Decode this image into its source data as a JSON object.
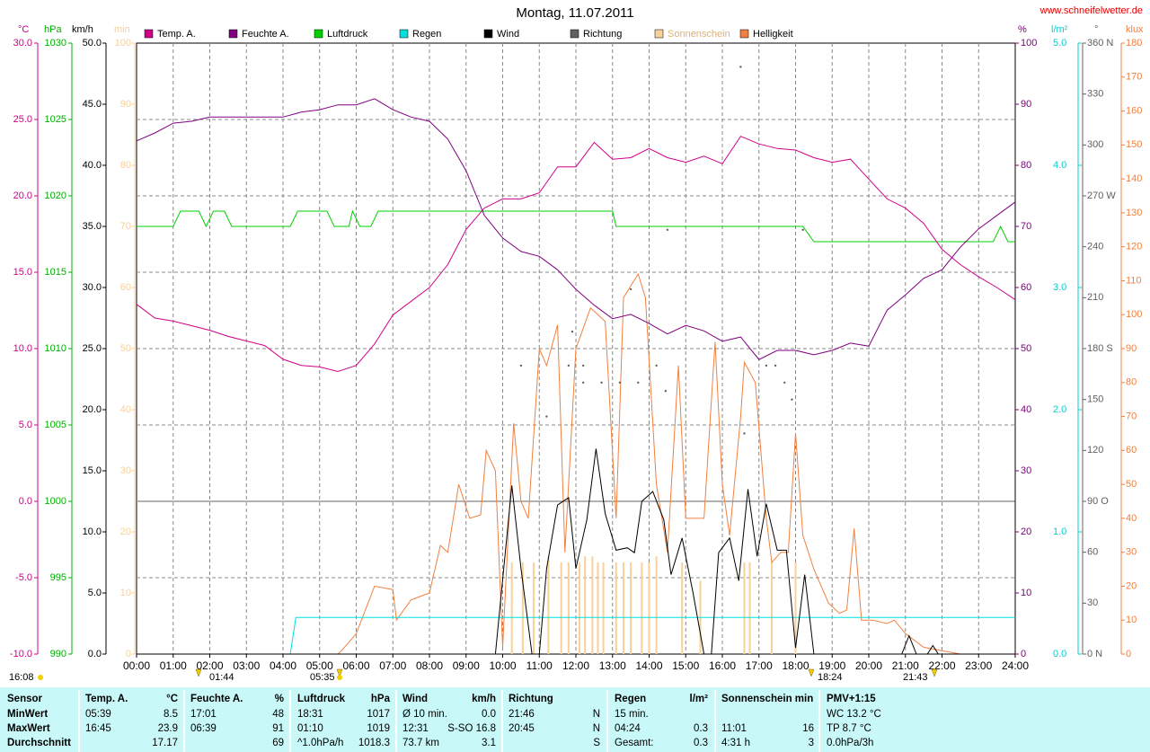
{
  "chart_data": {
    "type": "line",
    "title": "Montag, 11.07.2011",
    "source": "www.schneifelwetter.de",
    "xlim": [
      0,
      24
    ],
    "xticks": [
      {
        "value": 0,
        "label": "00:00"
      },
      {
        "value": 1,
        "label": "01:00"
      },
      {
        "value": 2,
        "label": "02:00"
      },
      {
        "value": 3,
        "label": "03:00"
      },
      {
        "value": 4,
        "label": "04:00"
      },
      {
        "value": 5,
        "label": "05:00"
      },
      {
        "value": 6,
        "label": "06:00"
      },
      {
        "value": 7,
        "label": "07:00"
      },
      {
        "value": 8,
        "label": "08:00"
      },
      {
        "value": 9,
        "label": "09:00"
      },
      {
        "value": 10,
        "label": "10:00"
      },
      {
        "value": 11,
        "label": "11:00"
      },
      {
        "value": 12,
        "label": "12:00"
      },
      {
        "value": 13,
        "label": "13:00"
      },
      {
        "value": 14,
        "label": "14:00"
      },
      {
        "value": 15,
        "label": "15:00"
      },
      {
        "value": 16,
        "label": "16:00"
      },
      {
        "value": 17,
        "label": "17:00"
      },
      {
        "value": 18,
        "label": "18:00"
      },
      {
        "value": 19,
        "label": "19:00"
      },
      {
        "value": 20,
        "label": "20:00"
      },
      {
        "value": 21,
        "label": "21:00"
      },
      {
        "value": 22,
        "label": "22:00"
      },
      {
        "value": 23,
        "label": "23:00"
      },
      {
        "value": 24,
        "label": "24:00"
      }
    ],
    "grid": true,
    "zero_line": true,
    "axes": [
      {
        "label": "°C",
        "color": "#d0008a",
        "lim": [
          -10,
          30
        ],
        "ticks": [
          {
            "value": -10,
            "label": "-10.0"
          },
          {
            "value": -5,
            "label": "-5.0"
          },
          {
            "value": 0,
            "label": "0.0"
          },
          {
            "value": 5,
            "label": "5.0"
          },
          {
            "value": 10,
            "label": "10.0"
          },
          {
            "value": 15,
            "label": "15.0"
          },
          {
            "value": 20,
            "label": "20.0"
          },
          {
            "value": 25,
            "label": "25.0"
          },
          {
            "value": 30,
            "label": "30.0"
          }
        ]
      },
      {
        "label": "hPa",
        "color": "#00b000",
        "lim": [
          990,
          1030
        ],
        "ticks": [
          990,
          995,
          1000,
          1005,
          1010,
          1015,
          1020,
          1025,
          1030
        ]
      },
      {
        "label": "km/h",
        "color": "#000000",
        "lim": [
          0,
          50
        ],
        "ticks": [
          {
            "value": 0,
            "label": "0.0"
          },
          {
            "value": 5,
            "label": "5.0"
          },
          {
            "value": 10,
            "label": "10.0"
          },
          {
            "value": 15,
            "label": "15.0"
          },
          {
            "value": 20,
            "label": "20.0"
          },
          {
            "value": 25,
            "label": "25.0"
          },
          {
            "value": 30,
            "label": "30.0"
          },
          {
            "value": 35,
            "label": "35.0"
          },
          {
            "value": 40,
            "label": "40.0"
          },
          {
            "value": 45,
            "label": "45.0"
          },
          {
            "value": 50,
            "label": "50.0"
          }
        ]
      },
      {
        "label": "min",
        "color": "#f8d098",
        "lim": [
          0,
          100
        ],
        "ticks": [
          0,
          10,
          20,
          30,
          40,
          50,
          60,
          70,
          80,
          90,
          100
        ]
      },
      {
        "label": "%",
        "color": "#800080",
        "lim": [
          0,
          100
        ],
        "ticks": [
          0,
          10,
          20,
          30,
          40,
          50,
          60,
          70,
          80,
          90,
          100
        ]
      },
      {
        "label": "l/m²",
        "color": "#00d0d0",
        "lim": [
          0,
          5
        ],
        "ticks": [
          {
            "value": 0,
            "label": "0.0"
          },
          {
            "value": 1,
            "label": "1.0"
          },
          {
            "value": 2,
            "label": "2.0"
          },
          {
            "value": 3,
            "label": "3.0"
          },
          {
            "value": 4,
            "label": "4.0"
          },
          {
            "value": 5,
            "label": "5.0"
          }
        ]
      },
      {
        "label": "°",
        "color": "#606060",
        "lim": [
          0,
          360
        ],
        "ticks": [
          {
            "value": 0,
            "label": "0 N"
          },
          30,
          60,
          {
            "value": 90,
            "label": "90 O"
          },
          120,
          150,
          {
            "value": 180,
            "label": "180 S"
          },
          210,
          240,
          {
            "value": 270,
            "label": "270 W"
          },
          300,
          330,
          {
            "value": 360,
            "label": "360 N"
          }
        ]
      },
      {
        "label": "klux",
        "color": "#f08040",
        "lim": [
          0,
          180
        ],
        "ticks": [
          0,
          10,
          20,
          30,
          40,
          50,
          60,
          70,
          80,
          90,
          100,
          110,
          120,
          130,
          140,
          150,
          160,
          170,
          180
        ]
      }
    ],
    "series": [
      {
        "name": "Temp. A.",
        "color": "#d0008a",
        "style": "line",
        "axis": 0,
        "x": [
          0,
          0.5,
          1,
          1.5,
          2,
          2.5,
          3,
          3.5,
          4,
          4.5,
          5,
          5.5,
          6,
          6.5,
          7,
          7.5,
          8,
          8.5,
          9,
          9.5,
          10,
          10.5,
          11,
          11.5,
          12,
          12.5,
          13,
          13.5,
          14,
          14.5,
          15,
          15.5,
          16,
          16.5,
          17,
          17.5,
          18,
          18.5,
          19,
          19.5,
          20,
          20.5,
          21,
          21.5,
          22,
          22.5,
          23,
          23.5,
          24
        ],
        "values": [
          12.9,
          12.0,
          11.8,
          11.5,
          11.2,
          10.8,
          10.5,
          10.2,
          9.3,
          8.9,
          8.8,
          8.5,
          8.9,
          10.3,
          12.2,
          13.1,
          14.0,
          15.5,
          17.8,
          19.2,
          19.8,
          19.8,
          20.2,
          21.9,
          21.9,
          23.5,
          22.4,
          22.5,
          23.1,
          22.5,
          22.2,
          22.6,
          22.1,
          23.9,
          23.4,
          23.1,
          23.0,
          22.5,
          22.2,
          22.4,
          21.1,
          19.8,
          19.2,
          18.2,
          16.5,
          15.5,
          14.7,
          14.0,
          13.2
        ]
      },
      {
        "name": "Feuchte A.",
        "color": "#800080",
        "style": "line",
        "axis": 4,
        "x": [
          0,
          0.5,
          1,
          1.5,
          2,
          2.5,
          3,
          3.5,
          4,
          4.5,
          5,
          5.5,
          6,
          6.5,
          7,
          7.5,
          8,
          8.5,
          9,
          9.5,
          10,
          10.5,
          11,
          11.5,
          12,
          12.5,
          13,
          13.5,
          14,
          14.5,
          15,
          15.5,
          16,
          16.5,
          17,
          17.5,
          18,
          18.5,
          19,
          19.5,
          20,
          20.5,
          21,
          21.5,
          22,
          22.5,
          23,
          23.5,
          24
        ],
        "values": [
          84.0,
          85.3,
          86.9,
          87.2,
          87.9,
          87.9,
          87.9,
          87.9,
          87.9,
          88.7,
          89.1,
          89.9,
          89.9,
          90.9,
          89.1,
          87.9,
          87.2,
          84.3,
          79.1,
          71.8,
          68.1,
          65.9,
          65.1,
          62.9,
          59.7,
          57.1,
          54.9,
          55.6,
          54.1,
          52.4,
          53.8,
          52.9,
          51.2,
          51.9,
          48.2,
          49.7,
          49.7,
          49.0,
          49.7,
          50.9,
          50.4,
          56.3,
          58.8,
          61.5,
          62.9,
          66.6,
          69.6,
          71.8,
          74.0
        ]
      },
      {
        "name": "Luftdruck",
        "color": "#00d000",
        "style": "line",
        "axis": 1,
        "x": [
          0,
          1.0,
          1.2,
          1.7,
          1.9,
          2.1,
          2.4,
          2.6,
          4.2,
          4.4,
          5.2,
          5.4,
          5.8,
          5.9,
          6.1,
          6.4,
          6.6,
          13.0,
          13.1,
          18.2,
          18.5,
          23.4,
          23.6,
          23.8,
          24
        ],
        "values": [
          1018,
          1018,
          1019,
          1019,
          1018,
          1019,
          1019,
          1018,
          1018,
          1019,
          1019,
          1018,
          1018,
          1019,
          1018,
          1018,
          1019,
          1019,
          1018,
          1018,
          1017,
          1017,
          1018,
          1017,
          1017
        ]
      },
      {
        "name": "Regen",
        "color": "#00e0e0",
        "style": "line",
        "axis": 5,
        "x": [
          0,
          4.2,
          4.35,
          24
        ],
        "values": [
          0,
          0,
          0.3,
          0.3
        ]
      },
      {
        "name": "Wind",
        "color": "#000000",
        "style": "line",
        "axis": 2,
        "x": [
          0,
          9.8,
          10.25,
          10.5,
          10.8,
          11,
          11.2,
          11.5,
          11.8,
          12,
          12.3,
          12.55,
          12.8,
          13.1,
          13.4,
          13.6,
          13.8,
          14.1,
          14.4,
          14.6,
          14.9,
          15.2,
          15.5,
          15.7,
          15.9,
          16.2,
          16.45,
          16.7,
          16.95,
          17.2,
          17.5,
          17.75,
          18,
          18.25,
          18.5,
          20.9,
          21.1,
          21.3,
          21.6,
          21.75,
          21.9,
          24
        ],
        "values": [
          0,
          0,
          13.8,
          7.0,
          0,
          0,
          7.0,
          12.2,
          12.8,
          7.0,
          11.0,
          16.8,
          11.5,
          8.5,
          8.7,
          8.3,
          12.5,
          13.3,
          11.0,
          6.5,
          9.5,
          5.0,
          0,
          0,
          8.3,
          9.5,
          6.0,
          13.5,
          8.0,
          12.3,
          8.5,
          8.5,
          0.5,
          6.5,
          0,
          0,
          1.5,
          0,
          0,
          0.7,
          0,
          0
        ]
      },
      {
        "name": "Richtung",
        "color": "#606060",
        "style": "dot",
        "axis": 6,
        "x": [
          10.5,
          11.2,
          11.8,
          11.9,
          12.2,
          12.2,
          12.7,
          13.2,
          13.5,
          13.7,
          14.2,
          14.45,
          14.5,
          16.5,
          16.6,
          17.2,
          17.45,
          17.7,
          17.9,
          18.2
        ],
        "values": [
          170,
          140,
          170,
          190,
          170,
          160,
          160,
          160,
          215,
          160,
          170,
          155,
          250,
          346,
          130,
          170,
          170,
          160,
          150,
          250
        ]
      },
      {
        "name": "Sonnenschein",
        "color": "#f8d098",
        "style": "bar",
        "axis": 3,
        "x": [
          10.25,
          10.55,
          10.85,
          11.25,
          11.6,
          11.8,
          12.1,
          12.25,
          12.45,
          12.6,
          12.75,
          13.1,
          13.3,
          13.5,
          13.8,
          14.0,
          14.2,
          14.9,
          15.4,
          16.6,
          16.75,
          17.35,
          18.0
        ],
        "values": [
          15,
          15,
          15,
          16,
          15,
          15,
          15,
          16,
          16,
          15,
          15,
          15,
          15,
          15,
          15,
          15,
          16,
          15,
          12,
          15,
          15,
          15,
          15
        ]
      },
      {
        "name": "Helligkeit",
        "color": "#f08040",
        "style": "line",
        "axis": 7,
        "x": [
          0,
          5.5,
          5.6,
          6,
          6.5,
          7,
          7.1,
          7.5,
          8,
          8.3,
          8.5,
          8.8,
          9.1,
          9.4,
          9.55,
          9.8,
          10,
          10.3,
          10.5,
          10.7,
          11,
          11.2,
          11.5,
          11.7,
          12,
          12.4,
          12.6,
          12.8,
          13.1,
          13.3,
          13.7,
          13.9,
          14.2,
          14.5,
          14.8,
          15,
          15.3,
          15.5,
          15.8,
          16,
          16.2,
          16.5,
          16.6,
          16.9,
          17.2,
          17.35,
          17.6,
          17.8,
          18,
          18.2,
          18.5,
          18.9,
          19.2,
          19.4,
          19.6,
          19.8,
          20.1,
          20.5,
          20.7,
          21,
          21.5,
          22,
          22.5,
          24
        ],
        "values": [
          0,
          0,
          1,
          6,
          20,
          19,
          10,
          16,
          18,
          32,
          30,
          50,
          40,
          41,
          60,
          54,
          2,
          68,
          45,
          40,
          90,
          85,
          97,
          30,
          90,
          102,
          100,
          98,
          40,
          105,
          112,
          105,
          50,
          30,
          85,
          40,
          40,
          40,
          92,
          50,
          35,
          70,
          86,
          80,
          40,
          27,
          30,
          30,
          65,
          35,
          25,
          15,
          12,
          13,
          37,
          10,
          10,
          9,
          10,
          6,
          2,
          1,
          0,
          0
        ]
      }
    ],
    "annotations": [
      "16:08",
      "01:44",
      "05:35",
      "18:24",
      "21:43"
    ]
  },
  "table": {
    "rows": [
      [
        {
          "left": "Sensor"
        },
        {
          "left": "Temp. A.",
          "right": "°C"
        },
        {
          "left": "Feuchte A.",
          "right": "%"
        },
        {
          "left": "Luftdruck",
          "right": "hPa"
        },
        {
          "left": "Wind",
          "right": "km/h"
        },
        {
          "left": "Richtung"
        },
        {
          "left": "Regen",
          "right": "l/m²"
        },
        {
          "left": "Sonnenschein min"
        },
        {
          "left": "PMV+1:15"
        }
      ],
      [
        {
          "left": "MinWert"
        },
        {
          "left": "05:39",
          "right": "8.5"
        },
        {
          "left": "17:01",
          "right": "48"
        },
        {
          "left": "18:31",
          "right": "1017"
        },
        {
          "left": "Ø 10 min.",
          "right": "0.0"
        },
        {
          "left": "21:46",
          "right": "N"
        },
        {
          "left": "15 min."
        },
        {},
        {
          "left": "WC 13.2 °C"
        }
      ],
      [
        {
          "left": "MaxWert"
        },
        {
          "left": "16:45",
          "right": "23.9"
        },
        {
          "left": "06:39",
          "right": "91"
        },
        {
          "left": "01:10",
          "right": "1019"
        },
        {
          "left": "12:31",
          "right": "S-SO 16.8"
        },
        {
          "left": "20:45",
          "right": "N"
        },
        {
          "left": "04:24",
          "right": "0.3"
        },
        {
          "left": "11:01",
          "right": "16"
        },
        {
          "left": "TP 8.7 °C"
        }
      ],
      [
        {
          "left": "Durchschnitt"
        },
        {
          "right": "17.17"
        },
        {
          "right": "69"
        },
        {
          "left": "^1.0hPa/h",
          "right": "1018.3"
        },
        {
          "left": "73.7 km",
          "right": "3.1"
        },
        {
          "right": "S"
        },
        {
          "left": "Gesamt:",
          "right": "0.3"
        },
        {
          "left": "4:31 h",
          "right": "3"
        },
        {
          "left": "0.0hPa/3h"
        }
      ]
    ]
  }
}
